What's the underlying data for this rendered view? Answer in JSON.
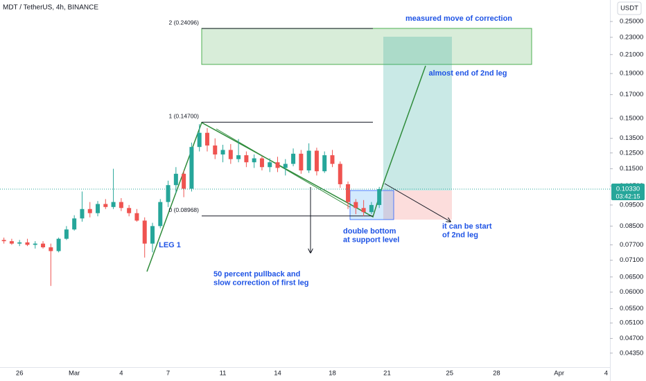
{
  "chart_data": {
    "type": "candlestick",
    "title": "MDT / TetherUS, 4h, BINANCE",
    "currency": "USDT",
    "log_scale": true,
    "grid": false,
    "up_color": "#26a69a",
    "down_color": "#ef5350",
    "categories": [
      null,
      null,
      "26",
      null,
      null,
      null,
      null,
      null,
      null,
      "Mar",
      null,
      null,
      null,
      null,
      null,
      "4",
      null,
      null,
      null,
      null,
      null,
      "7",
      null,
      null,
      null,
      null,
      null,
      null,
      "11",
      null,
      null,
      null,
      null,
      null,
      null,
      "14",
      null,
      null,
      null,
      null,
      null,
      null,
      "18",
      null,
      null,
      null,
      null,
      null,
      null,
      "21",
      null,
      null,
      null,
      null,
      null,
      null,
      null,
      "25",
      null,
      null,
      null,
      null,
      null,
      "28",
      null,
      null,
      null,
      null,
      null,
      null,
      null,
      "Apr",
      null,
      null,
      null,
      null,
      null,
      "4"
    ],
    "open": [
      0.079,
      0.0785,
      0.0775,
      0.078,
      0.077,
      0.0775,
      0.076,
      0.0745,
      0.0795,
      0.0835,
      0.0885,
      0.093,
      0.091,
      0.0955,
      0.094,
      0.0965,
      0.0935,
      0.091,
      0.0875,
      0.0775,
      0.085,
      0.0965,
      0.1055,
      0.112,
      0.1035,
      0.129,
      0.139,
      0.13,
      0.124,
      0.127,
      0.121,
      0.1235,
      0.119,
      0.1215,
      0.116,
      0.119,
      0.1155,
      0.118,
      0.1245,
      0.114,
      0.1265,
      0.1135,
      0.1235,
      0.118,
      0.106,
      0.0965,
      0.0935,
      0.0915,
      0.095,
      null,
      null,
      null,
      null,
      null,
      null,
      null,
      null,
      null,
      null,
      null,
      null,
      null,
      null,
      null,
      null,
      null,
      null,
      null,
      null,
      null,
      null,
      null,
      null,
      null,
      null,
      null,
      null,
      null
    ],
    "high": [
      0.08,
      0.0795,
      0.079,
      0.0795,
      0.0785,
      0.0785,
      0.0775,
      0.08,
      0.085,
      0.09,
      0.102,
      0.0965,
      0.097,
      0.098,
      0.115,
      0.0985,
      0.095,
      0.093,
      0.089,
      0.0865,
      0.098,
      0.108,
      0.116,
      0.114,
      0.132,
      0.1455,
      0.1425,
      0.135,
      0.1305,
      0.131,
      0.1345,
      0.126,
      0.124,
      0.123,
      0.1215,
      0.1225,
      0.121,
      0.128,
      0.127,
      0.1315,
      0.1285,
      0.126,
      0.127,
      0.1195,
      0.1075,
      0.098,
      0.0975,
      0.0965,
      0.1045,
      null,
      null,
      null,
      null,
      null,
      null,
      null,
      null,
      null,
      null,
      null,
      null,
      null,
      null,
      null,
      null,
      null,
      null,
      null,
      null,
      null,
      null,
      null,
      null,
      null,
      null,
      null,
      null,
      null
    ],
    "low": [
      0.0775,
      0.077,
      0.0765,
      0.0765,
      0.0755,
      0.0755,
      0.062,
      0.074,
      0.079,
      0.083,
      0.087,
      0.089,
      0.0895,
      0.093,
      0.093,
      0.092,
      0.0895,
      0.087,
      0.072,
      0.074,
      0.084,
      0.094,
      0.101,
      0.099,
      0.102,
      0.126,
      0.126,
      0.121,
      0.119,
      0.118,
      0.119,
      0.116,
      0.1155,
      0.114,
      0.113,
      0.113,
      0.111,
      0.1165,
      0.112,
      0.1125,
      0.111,
      0.1125,
      0.116,
      0.104,
      0.093,
      0.0905,
      0.0895,
      0.0905,
      0.0935,
      null,
      null,
      null,
      null,
      null,
      null,
      null,
      null,
      null,
      null,
      null,
      null,
      null,
      null,
      null,
      null,
      null,
      null,
      null,
      null,
      null,
      null,
      null,
      null,
      null,
      null,
      null,
      null,
      null
    ],
    "close": [
      0.0785,
      0.0775,
      0.078,
      0.077,
      0.0775,
      0.076,
      0.0745,
      0.0795,
      0.0835,
      0.0885,
      0.093,
      0.091,
      0.0955,
      0.094,
      0.0965,
      0.0935,
      0.091,
      0.0875,
      0.0775,
      0.085,
      0.0965,
      0.1055,
      0.112,
      0.1035,
      0.129,
      0.139,
      0.13,
      0.124,
      0.127,
      0.121,
      0.1235,
      0.119,
      0.1215,
      0.116,
      0.119,
      0.1155,
      0.118,
      0.1245,
      0.114,
      0.1265,
      0.1135,
      0.1235,
      0.118,
      0.106,
      0.0965,
      0.0935,
      0.0915,
      0.095,
      0.1033,
      null,
      null,
      null,
      null,
      null,
      null,
      null,
      null,
      null,
      null,
      null,
      null,
      null,
      null,
      null,
      null,
      null,
      null,
      null,
      null,
      null,
      null,
      null,
      null,
      null,
      null,
      null,
      null,
      null
    ],
    "ylim": [
      0.0404,
      0.28
    ],
    "yticks": [
      {
        "value": 0.25,
        "label": "0.25000"
      },
      {
        "value": 0.23,
        "label": "0.23000"
      },
      {
        "value": 0.21,
        "label": "0.21000"
      },
      {
        "value": 0.19,
        "label": "0.19000"
      },
      {
        "value": 0.17,
        "label": "0.17000"
      },
      {
        "value": 0.15,
        "label": "0.15000"
      },
      {
        "value": 0.135,
        "label": "0.13500"
      },
      {
        "value": 0.125,
        "label": "0.12500"
      },
      {
        "value": 0.115,
        "label": "0.11500"
      },
      {
        "value": 0.105,
        "label": "0.10500"
      },
      {
        "value": 0.095,
        "label": "0.09500"
      },
      {
        "value": 0.085,
        "label": "0.08500"
      },
      {
        "value": 0.077,
        "label": "0.07700"
      },
      {
        "value": 0.071,
        "label": "0.07100"
      },
      {
        "value": 0.065,
        "label": "0.06500"
      },
      {
        "value": 0.06,
        "label": "0.06000"
      },
      {
        "value": 0.055,
        "label": "0.05500"
      },
      {
        "value": 0.051,
        "label": "0.05100"
      },
      {
        "value": 0.047,
        "label": "0.04700"
      },
      {
        "value": 0.0435,
        "label": "0.04350"
      }
    ],
    "last_price": {
      "value": 0.1033,
      "label": "0.10330"
    },
    "countdown": "03:42:15",
    "fib_levels": [
      {
        "value": 0.24096,
        "label": "2 (0.24096)"
      },
      {
        "value": 0.147,
        "label": "1 (0.14700)"
      },
      {
        "value": 0.08968,
        "label": "0 (0.08968)"
      }
    ],
    "annotations": [
      [
        "measured move of correction"
      ],
      [
        "almost end of 2nd leg"
      ],
      [
        "LEG 1"
      ],
      [
        "50 percent pullback and",
        "slow correction of first leg"
      ],
      [
        "double bottom",
        "at support level"
      ],
      [
        "it can be start",
        "  of 2nd leg"
      ]
    ]
  }
}
